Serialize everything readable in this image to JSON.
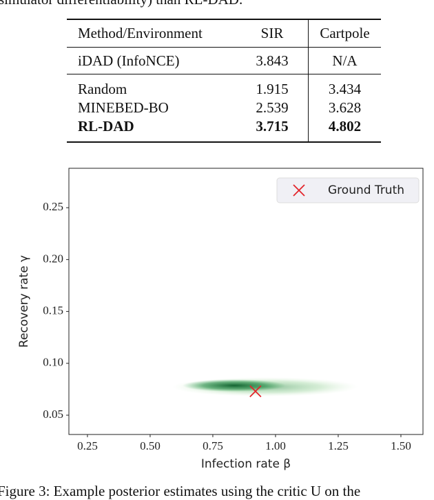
{
  "top_text": "simulator differentiability) than RL-DAD.",
  "table": {
    "headers": [
      "Method/Environment",
      "SIR",
      "Cartpole"
    ],
    "rows": [
      [
        "iDAD (InfoNCE)",
        "3.843",
        "N/A"
      ],
      [
        "Random",
        "1.915",
        "3.434"
      ],
      [
        "MINEBED-BO",
        "2.539",
        "3.628"
      ],
      [
        "RL-DAD",
        "3.715",
        "4.802"
      ]
    ],
    "bold_rows": [
      3
    ]
  },
  "chart_data": {
    "type": "scatter",
    "xlabel": "Infection rate β",
    "ylabel": "Recovery rate γ",
    "series": [
      {
        "name": "Ground Truth",
        "color": "#e3242b",
        "marker": "x",
        "x": [
          0.92
        ],
        "y": [
          0.073
        ]
      }
    ],
    "xlim": [
      0.176,
      1.588
    ],
    "ylim": [
      0.0314,
      0.288
    ],
    "xticks": [
      0.25,
      {
        "value": 0.5,
        "label": "0.50"
      },
      0.75,
      {
        "value": 1.0,
        "label": "1.00"
      },
      1.25,
      {
        "value": 1.5,
        "label": "1.50"
      }
    ],
    "yticks": [
      0.05,
      {
        "value": 0.1,
        "label": "0.10"
      },
      0.15,
      {
        "value": 0.2,
        "label": "0.20"
      },
      0.25
    ],
    "legend": "upper-right"
  },
  "caption": "Figure 3: Example posterior estimates using the critic U on the"
}
